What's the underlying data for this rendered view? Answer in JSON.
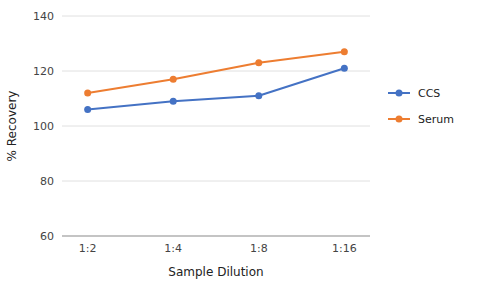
{
  "chart_data": {
    "type": "line",
    "xlabel": "Sample Dilution",
    "ylabel": "% Recovery",
    "categories": [
      "1:2",
      "1:4",
      "1:8",
      "1:16"
    ],
    "series": [
      {
        "name": "CCS",
        "color": "#4472C4",
        "values": [
          106,
          109,
          111,
          121
        ]
      },
      {
        "name": "Serum",
        "color": "#ED7D31",
        "values": [
          112,
          117,
          123,
          127
        ]
      }
    ],
    "ylim": [
      60,
      140
    ],
    "yticks": [
      60,
      80,
      100,
      120,
      140
    ],
    "grid": true,
    "legend": "right",
    "marker": "circle"
  }
}
